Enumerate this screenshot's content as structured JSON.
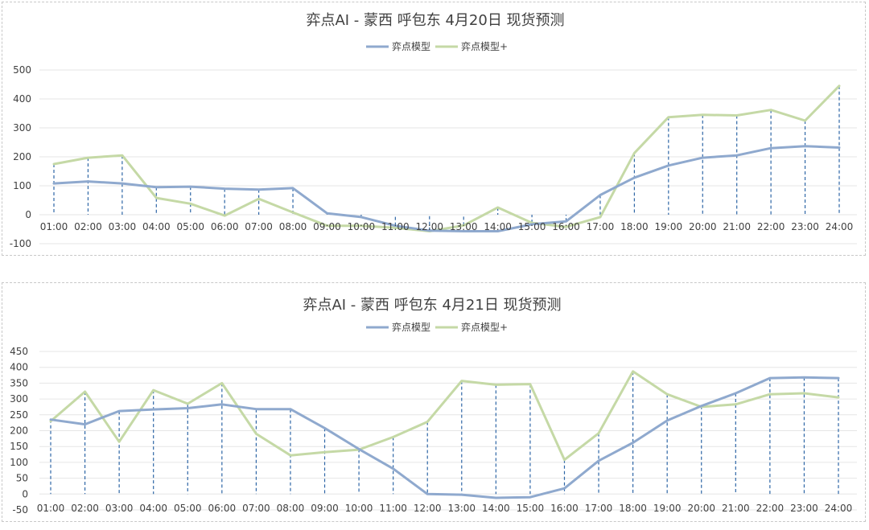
{
  "colors": {
    "series1": "#8FA9CE",
    "series2": "#C5D9A6",
    "droplines": "#2E66A6",
    "grid": "#E6E6E6"
  },
  "chart_data": [
    {
      "type": "line",
      "title": "弈点AI - 蒙西 呼包东 4月20日 现货预测",
      "categories": [
        "01:00",
        "02:00",
        "03:00",
        "04:00",
        "05:00",
        "06:00",
        "07:00",
        "08:00",
        "09:00",
        "10:00",
        "11:00",
        "12:00",
        "13:00",
        "14:00",
        "15:00",
        "16:00",
        "17:00",
        "18:00",
        "19:00",
        "20:00",
        "21:00",
        "22:00",
        "23:00",
        "24:00"
      ],
      "series": [
        {
          "name": "弈点模型",
          "values": [
            108,
            115,
            108,
            95,
            97,
            90,
            87,
            92,
            5,
            -8,
            -38,
            -55,
            -57,
            -57,
            -33,
            -23,
            68,
            128,
            170,
            197,
            205,
            230,
            237,
            232
          ]
        },
        {
          "name": "弈点模型+",
          "values": [
            175,
            197,
            205,
            58,
            38,
            -3,
            55,
            8,
            -38,
            -38,
            -45,
            -57,
            -37,
            25,
            -28,
            -42,
            -8,
            213,
            337,
            345,
            343,
            362,
            325,
            445
          ]
        }
      ],
      "yticks": [
        -100,
        0,
        100,
        200,
        300,
        400,
        500
      ],
      "ylim": [
        -100,
        500
      ],
      "legend": "top-center",
      "grid": true,
      "droplines": true
    },
    {
      "type": "line",
      "title": "弈点AI - 蒙西 呼包东 4月21日 现货预测",
      "categories": [
        "01:00",
        "02:00",
        "03:00",
        "04:00",
        "05:00",
        "06:00",
        "07:00",
        "08:00",
        "09:00",
        "10:00",
        "11:00",
        "12:00",
        "13:00",
        "14:00",
        "15:00",
        "16:00",
        "17:00",
        "18:00",
        "19:00",
        "20:00",
        "21:00",
        "22:00",
        "23:00",
        "24:00"
      ],
      "series": [
        {
          "name": "弈点模型",
          "values": [
            235,
            220,
            262,
            267,
            271,
            283,
            268,
            268,
            208,
            142,
            80,
            0,
            -2,
            -12,
            -10,
            18,
            105,
            162,
            232,
            278,
            318,
            366,
            368,
            366
          ]
        },
        {
          "name": "弈点模型+",
          "values": [
            230,
            323,
            165,
            328,
            285,
            350,
            190,
            122,
            132,
            140,
            180,
            228,
            357,
            345,
            347,
            108,
            192,
            387,
            315,
            275,
            283,
            315,
            318,
            305
          ]
        }
      ],
      "yticks": [
        -50,
        0,
        50,
        100,
        150,
        200,
        250,
        300,
        350,
        400,
        450
      ],
      "ylim": [
        -50,
        450
      ],
      "legend": "top-center",
      "grid": true,
      "droplines": true
    }
  ]
}
